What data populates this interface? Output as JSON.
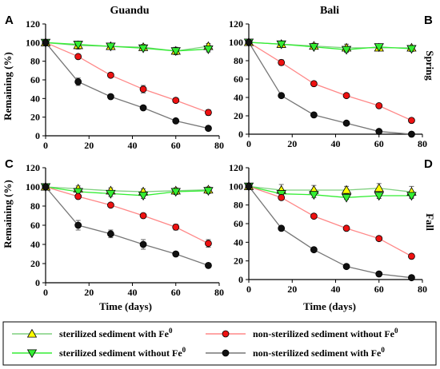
{
  "chart_data": [
    {
      "type": "line",
      "panel": "A",
      "title": "Guandu",
      "row_label": "",
      "xlabel": "",
      "ylabel": "Remaining (%)",
      "xlim": [
        0,
        80
      ],
      "ylim": [
        0,
        120
      ],
      "xticks": [
        0,
        20,
        40,
        60,
        80
      ],
      "yticks": [
        0,
        20,
        40,
        60,
        80,
        100,
        120
      ],
      "x": [
        0,
        15,
        30,
        45,
        60,
        75
      ],
      "series": [
        {
          "key": "s1",
          "name": "sterilized sediment with Fe⁰",
          "values": [
            100,
            97,
            96,
            95,
            91,
            96
          ],
          "errors": [
            3,
            4,
            3,
            3,
            4,
            3
          ]
        },
        {
          "key": "s2",
          "name": "sterilized sediment without Fe⁰",
          "values": [
            100,
            98,
            96,
            94,
            91,
            93
          ],
          "errors": [
            2,
            3,
            2,
            2,
            3,
            3
          ]
        },
        {
          "key": "s3",
          "name": "non-sterilized sediment without Fe⁰",
          "values": [
            100,
            85,
            65,
            50,
            38,
            25
          ],
          "errors": [
            2,
            2,
            2,
            4,
            2,
            3
          ]
        },
        {
          "key": "s4",
          "name": "non-sterilized sediment with Fe⁰",
          "values": [
            100,
            58,
            42,
            30,
            16,
            8
          ],
          "errors": [
            2,
            4,
            2,
            2,
            2,
            2
          ]
        }
      ]
    },
    {
      "type": "line",
      "panel": "B",
      "title": "Bali",
      "row_label": "Spring",
      "xlabel": "",
      "ylabel": "",
      "xlim": [
        0,
        80
      ],
      "ylim": [
        0,
        120
      ],
      "xticks": [
        0,
        20,
        40,
        60,
        80
      ],
      "yticks": [
        0,
        20,
        40,
        60,
        80,
        100,
        120
      ],
      "x": [
        0,
        15,
        30,
        45,
        60,
        75
      ],
      "series": [
        {
          "key": "s1",
          "name": "sterilized sediment with Fe⁰",
          "values": [
            100,
            98,
            96,
            94,
            94,
            94
          ],
          "errors": [
            2,
            2,
            3,
            4,
            3,
            2
          ]
        },
        {
          "key": "s2",
          "name": "sterilized sediment without Fe⁰",
          "values": [
            100,
            98,
            95,
            92,
            95,
            93
          ],
          "errors": [
            2,
            2,
            2,
            3,
            3,
            3
          ]
        },
        {
          "key": "s3",
          "name": "non-sterilized sediment without Fe⁰",
          "values": [
            100,
            78,
            55,
            42,
            31,
            15
          ],
          "errors": [
            2,
            3,
            2,
            2,
            2,
            2
          ]
        },
        {
          "key": "s4",
          "name": "non-sterilized sediment with Fe⁰",
          "values": [
            100,
            42,
            21,
            12,
            3,
            0
          ],
          "errors": [
            2,
            2,
            2,
            2,
            1,
            1
          ]
        }
      ]
    },
    {
      "type": "line",
      "panel": "C",
      "title": "",
      "row_label": "",
      "xlabel": "Time (days)",
      "ylabel": "Remaining (%)",
      "xlim": [
        0,
        80
      ],
      "ylim": [
        0,
        120
      ],
      "xticks": [
        0,
        20,
        40,
        60,
        80
      ],
      "yticks": [
        0,
        20,
        40,
        60,
        80,
        100,
        120
      ],
      "x": [
        0,
        15,
        30,
        45,
        60,
        75
      ],
      "series": [
        {
          "key": "s1",
          "name": "sterilized sediment with Fe⁰",
          "values": [
            100,
            98,
            96,
            95,
            96,
            97
          ],
          "errors": [
            2,
            3,
            3,
            3,
            3,
            3
          ]
        },
        {
          "key": "s2",
          "name": "sterilized sediment without Fe⁰",
          "values": [
            100,
            95,
            93,
            91,
            95,
            96
          ],
          "errors": [
            2,
            3,
            3,
            3,
            3,
            3
          ]
        },
        {
          "key": "s3",
          "name": "non-sterilized sediment without Fe⁰",
          "values": [
            100,
            90,
            81,
            70,
            58,
            41
          ],
          "errors": [
            2,
            2,
            2,
            2,
            3,
            4
          ]
        },
        {
          "key": "s4",
          "name": "non-sterilized sediment with Fe⁰",
          "values": [
            100,
            60,
            51,
            40,
            30,
            18
          ],
          "errors": [
            2,
            5,
            4,
            5,
            2,
            2
          ]
        }
      ]
    },
    {
      "type": "line",
      "panel": "D",
      "title": "",
      "row_label": "Fall",
      "xlabel": "Time (days)",
      "ylabel": "",
      "xlim": [
        0,
        80
      ],
      "ylim": [
        0,
        120
      ],
      "xticks": [
        0,
        20,
        40,
        60,
        80
      ],
      "yticks": [
        0,
        20,
        40,
        60,
        80,
        100,
        120
      ],
      "x": [
        0,
        15,
        30,
        45,
        60,
        75
      ],
      "series": [
        {
          "key": "s1",
          "name": "sterilized sediment with Fe⁰",
          "values": [
            100,
            96,
            96,
            96,
            98,
            94
          ],
          "errors": [
            2,
            6,
            5,
            4,
            5,
            6
          ]
        },
        {
          "key": "s2",
          "name": "sterilized sediment without Fe⁰",
          "values": [
            100,
            92,
            91,
            88,
            90,
            90
          ],
          "errors": [
            2,
            3,
            3,
            2,
            3,
            3
          ]
        },
        {
          "key": "s3",
          "name": "non-sterilized sediment without Fe⁰",
          "values": [
            100,
            88,
            68,
            55,
            44,
            25
          ],
          "errors": [
            2,
            2,
            2,
            2,
            2,
            2
          ]
        },
        {
          "key": "s4",
          "name": "non-sterilized sediment with Fe⁰",
          "values": [
            100,
            55,
            32,
            14,
            6,
            2
          ],
          "errors": [
            2,
            2,
            2,
            2,
            1,
            1
          ]
        }
      ]
    }
  ],
  "styles": {
    "s1": {
      "marker": "triangle-up",
      "fill": "#ffff00",
      "line": "#7fcf7f"
    },
    "s2": {
      "marker": "triangle-down",
      "fill": "#33ee33",
      "line": "#33ee33"
    },
    "s3": {
      "marker": "circle",
      "fill": "#ee1111",
      "line": "#ff8888"
    },
    "s4": {
      "marker": "circle",
      "fill": "#111111",
      "line": "#777777"
    }
  },
  "legend": {
    "placement": "bottom",
    "items": [
      {
        "key": "s1",
        "label": "sterilized sediment with Fe",
        "sup": "0"
      },
      {
        "key": "s3",
        "label": "non-sterilized sediment without Fe",
        "sup": "0"
      },
      {
        "key": "s2",
        "label": "sterilized sediment without Fe",
        "sup": "0"
      },
      {
        "key": "s4",
        "label": "non-sterilized sediment with Fe",
        "sup": "0"
      }
    ]
  }
}
